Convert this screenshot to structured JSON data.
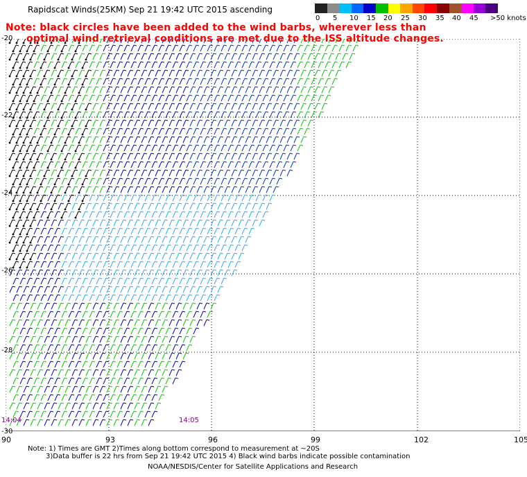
{
  "header": {
    "title": "Rapidscat Winds(25KM)  Sep 21 19:42 UTC 2015 ascending",
    "note_line1": "Note: black circles have been added to the wind barbs, wherever less than",
    "note_line2": "optimal wind retrieval conditions are met due to the ISS altitude changes."
  },
  "color_scale": {
    "colors": [
      "#222222",
      "#8c8c8c",
      "#00bfff",
      "#0066ff",
      "#0000cd",
      "#00c000",
      "#ffff00",
      "#ffa500",
      "#ff4500",
      "#ff0000",
      "#8b0000",
      "#a0522d",
      "#ff00ff",
      "#9400d3",
      "#4b0082"
    ],
    "labels": [
      "0",
      "5",
      "10",
      "15",
      "20",
      "25",
      "30",
      "35",
      "40",
      "45",
      ">50 knots"
    ]
  },
  "map": {
    "x_ticks": [
      "90",
      "93",
      "96",
      "99",
      "102",
      "105"
    ],
    "y_ticks": [
      "-20",
      "-22",
      "-24",
      "-26",
      "-28",
      "-30"
    ],
    "time_labels": [
      "14:04",
      "14:05"
    ]
  },
  "footer": {
    "line1": "Note: 1) Times are GMT 2)Times along bottom correspond to measurement at ~20S",
    "line2": "3)Data buffer is 22 hrs from Sep 21 19:42 UTC 2015 4) Black wind barbs indicate possible contamination",
    "line3": "NOAA/NESDIS/Center for Satellite Applications and Research"
  }
}
